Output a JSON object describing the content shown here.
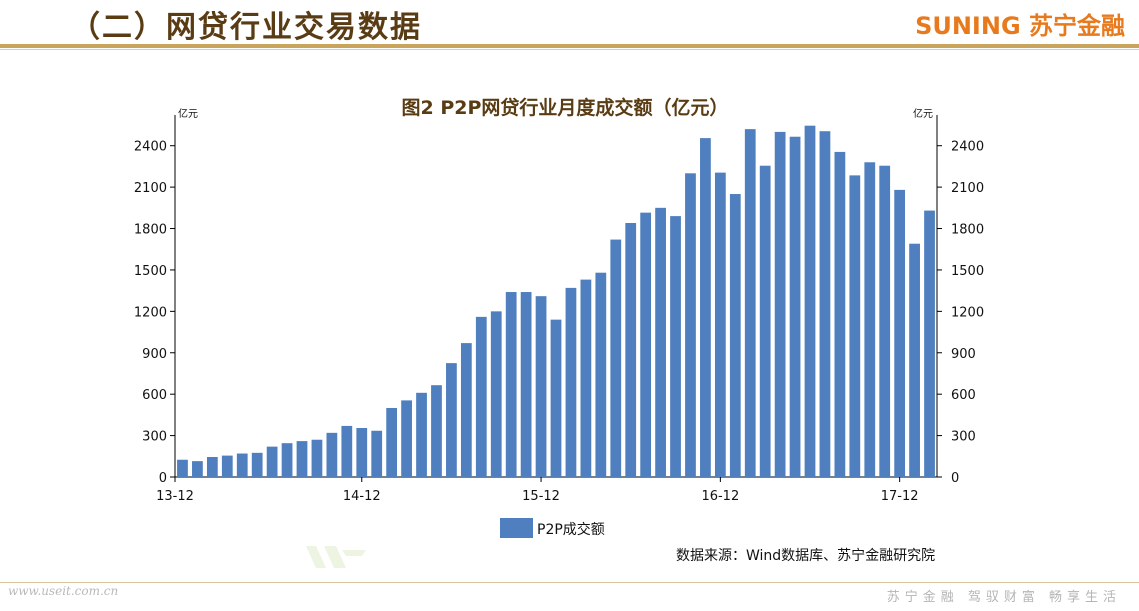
{
  "header": {
    "title": "（二）网贷行业交易数据",
    "brand": "SUNING 苏宁金融"
  },
  "footer": {
    "watermark": "www.useit.com.cn",
    "slogan": "苏宁金融 驾驭财富 畅享生活"
  },
  "source": "数据来源：Wind数据库、苏宁金融研究院",
  "colors": {
    "bar": "#4f7fbe",
    "title": "#5a3c14",
    "brand": "#e87a1e",
    "rule": "#c9a45c"
  },
  "chart_data": {
    "type": "bar",
    "title": "图2 P2P网贷行业月度成交额（亿元）",
    "ylabel_left": "亿元",
    "ylabel_right": "亿元",
    "ylim": [
      0,
      2550
    ],
    "yticks": [
      0,
      300,
      600,
      900,
      1200,
      1500,
      1800,
      2100,
      2400
    ],
    "x_tick_labels": [
      {
        "index": 0,
        "label": "13-12"
      },
      {
        "index": 12,
        "label": "14-12"
      },
      {
        "index": 24,
        "label": "15-12"
      },
      {
        "index": 36,
        "label": "16-12"
      },
      {
        "index": 48,
        "label": "17-12"
      }
    ],
    "legend": {
      "position": "bottom",
      "entries": [
        "P2P成交额"
      ]
    },
    "grid": false,
    "series": [
      {
        "name": "P2P成交额",
        "values": [
          125,
          115,
          145,
          155,
          170,
          175,
          220,
          245,
          260,
          270,
          320,
          370,
          355,
          335,
          500,
          555,
          610,
          665,
          825,
          970,
          1160,
          1200,
          1340,
          1340,
          1310,
          1140,
          1370,
          1430,
          1480,
          1720,
          1840,
          1915,
          1950,
          1890,
          2200,
          2455,
          2205,
          2050,
          2520,
          2255,
          2500,
          2465,
          2545,
          2505,
          2355,
          2185,
          2280,
          2255,
          2080,
          1690,
          1930
        ]
      }
    ]
  }
}
